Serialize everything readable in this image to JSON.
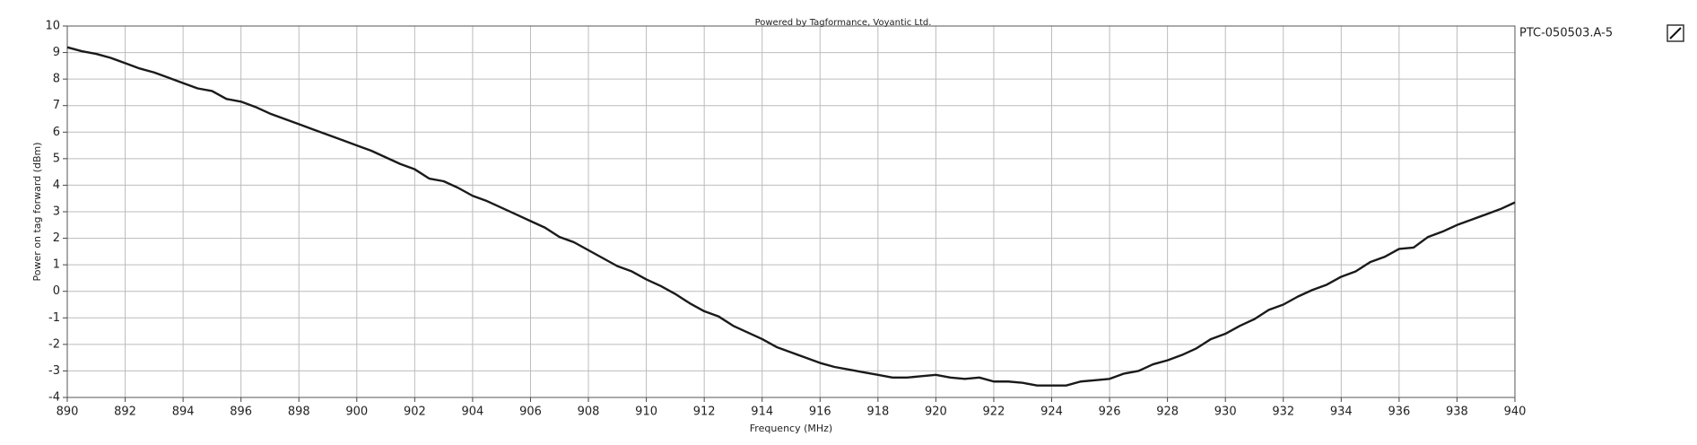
{
  "chart_data": {
    "type": "line",
    "title": "Powered by Tagformance, Voyantic Ltd.",
    "x_label": "Frequency (MHz)",
    "y_label": "Power on tag forward (dBm)",
    "xlim": [
      890,
      940
    ],
    "xticks": [
      890,
      892,
      894,
      896,
      898,
      900,
      902,
      904,
      906,
      908,
      910,
      912,
      914,
      916,
      918,
      920,
      922,
      924,
      926,
      928,
      930,
      932,
      934,
      936,
      938,
      940
    ],
    "ylim": [
      -4,
      10
    ],
    "yticks": [
      -4,
      -3,
      -2,
      -1,
      0,
      1,
      2,
      3,
      4,
      5,
      6,
      7,
      8,
      9,
      10
    ],
    "grid": true,
    "legend": "right",
    "x": [
      890,
      890.5,
      891,
      891.5,
      892,
      892.5,
      893,
      893.5,
      894,
      894.5,
      895,
      895.5,
      896,
      896.5,
      897,
      897.5,
      898,
      898.5,
      899,
      899.5,
      900,
      900.5,
      901,
      901.5,
      902,
      902.5,
      903,
      903.5,
      904,
      904.5,
      905,
      905.5,
      906,
      906.5,
      907,
      907.5,
      908,
      908.5,
      909,
      909.5,
      910,
      910.5,
      911,
      911.5,
      912,
      912.5,
      913,
      913.5,
      914,
      914.5,
      915,
      915.5,
      916,
      916.5,
      917,
      917.5,
      918,
      918.5,
      919,
      919.5,
      920,
      920.5,
      921,
      921.5,
      922,
      922.5,
      923,
      923.5,
      924,
      924.5,
      925,
      925.5,
      926,
      926.5,
      927,
      927.5,
      928,
      928.5,
      929,
      929.5,
      930,
      930.5,
      931,
      931.5,
      932,
      932.5,
      933,
      933.5,
      934,
      934.5,
      935,
      935.5,
      936,
      936.5,
      937,
      937.5,
      938,
      938.5,
      939,
      939.5,
      940
    ],
    "series": [
      {
        "name": "PTC-050503.A-5",
        "color": "#1a1a1a",
        "values": [
          9.2,
          9.05,
          8.95,
          8.8,
          8.6,
          8.4,
          8.25,
          8.05,
          7.85,
          7.65,
          7.55,
          7.25,
          7.15,
          6.95,
          6.7,
          6.5,
          6.3,
          6.1,
          5.9,
          5.7,
          5.5,
          5.3,
          5.05,
          4.8,
          4.6,
          4.25,
          4.15,
          3.9,
          3.6,
          3.4,
          3.15,
          2.9,
          2.65,
          2.4,
          2.05,
          1.85,
          1.55,
          1.25,
          0.95,
          0.75,
          0.45,
          0.2,
          -0.1,
          -0.45,
          -0.75,
          -0.95,
          -1.3,
          -1.55,
          -1.8,
          -2.1,
          -2.3,
          -2.5,
          -2.7,
          -2.85,
          -2.95,
          -3.05,
          -3.15,
          -3.25,
          -3.25,
          -3.2,
          -3.15,
          -3.25,
          -3.3,
          -3.25,
          -3.4,
          -3.4,
          -3.45,
          -3.55,
          -3.55,
          -3.55,
          -3.4,
          -3.35,
          -3.3,
          -3.1,
          -3.0,
          -2.75,
          -2.6,
          -2.4,
          -2.15,
          -1.8,
          -1.6,
          -1.3,
          -1.05,
          -0.7,
          -0.5,
          -0.2,
          0.05,
          0.25,
          0.55,
          0.75,
          1.1,
          1.3,
          1.6,
          1.65,
          2.05,
          2.25,
          2.5,
          2.7,
          2.9,
          3.1,
          3.35
        ]
      }
    ]
  }
}
